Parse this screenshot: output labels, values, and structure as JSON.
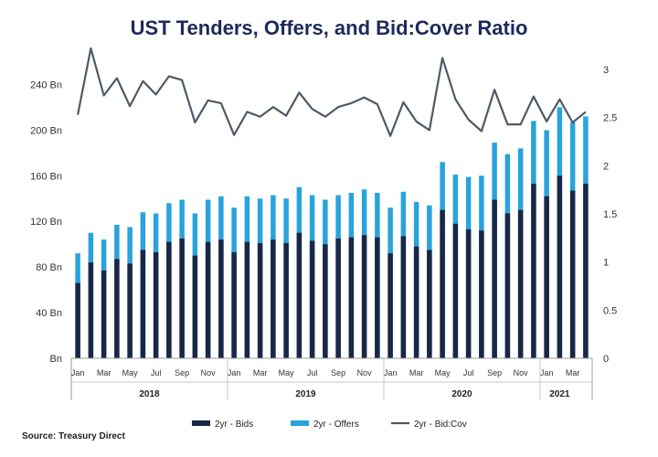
{
  "title": "UST Tenders, Offers, and Bid:Cover Ratio",
  "source": "Source: Treasury Direct",
  "chart_data": {
    "type": "bar",
    "title": "UST Tenders, Offers, and Bid:Cover Ratio",
    "left_axis": {
      "ticks": [
        0,
        40,
        80,
        120,
        160,
        200,
        240
      ],
      "tick_labels": [
        "Bn",
        "40 Bn",
        "80 Bn",
        "120 Bn",
        "160 Bn",
        "200 Bn",
        "240 Bn"
      ],
      "range": [
        0,
        270
      ]
    },
    "right_axis": {
      "ticks": [
        0,
        0.5,
        1,
        1.5,
        2,
        2.5,
        3
      ],
      "tick_labels": [
        "0",
        "0.5",
        "1",
        "1.5",
        "2",
        "2.5",
        "3"
      ],
      "range": [
        0,
        3.2
      ]
    },
    "month_labels": [
      "Jan",
      "Mar",
      "May",
      "Jul",
      "Sep",
      "Nov",
      "Jan",
      "Mar",
      "May",
      "Jul",
      "Sep",
      "Nov",
      "Jan",
      "Mar",
      "May",
      "Jul",
      "Sep",
      "Nov",
      "Jan",
      "Mar"
    ],
    "month_label_index": [
      0,
      2,
      4,
      6,
      8,
      10,
      12,
      14,
      16,
      18,
      20,
      22,
      24,
      26,
      28,
      30,
      32,
      34,
      36,
      38
    ],
    "years": [
      {
        "label": "2018",
        "start": 0,
        "end": 12
      },
      {
        "label": "2019",
        "start": 12,
        "end": 24
      },
      {
        "label": "2020",
        "start": 24,
        "end": 36
      },
      {
        "label": "2021",
        "start": 36,
        "end": 39
      }
    ],
    "series": [
      {
        "name": "2yr - Bids",
        "kind": "bar",
        "axis": "left",
        "color": "#1a2744",
        "values": [
          66,
          84,
          77,
          87,
          83,
          95,
          93,
          102,
          105,
          90,
          102,
          104,
          93,
          102,
          101,
          104,
          101,
          110,
          103,
          100,
          105,
          106,
          108,
          106,
          92,
          107,
          98,
          95,
          130,
          118,
          113,
          112,
          139,
          127,
          130,
          153,
          142,
          160,
          147,
          153
        ]
      },
      {
        "name": "2yr - Offers",
        "kind": "bar",
        "axis": "left",
        "color": "#29a3dc",
        "values": [
          92,
          110,
          104,
          117,
          115,
          128,
          127,
          136,
          139,
          127,
          139,
          142,
          132,
          142,
          140,
          143,
          140,
          150,
          143,
          139,
          143,
          145,
          148,
          145,
          132,
          146,
          137,
          134,
          172,
          161,
          159,
          160,
          189,
          179,
          184,
          208,
          200,
          220,
          207,
          212
        ]
      },
      {
        "name": "2yr - Bid:Cov",
        "kind": "line",
        "axis": "right",
        "color": "#4d5a66",
        "values": [
          2.53,
          3.22,
          2.73,
          2.91,
          2.62,
          2.88,
          2.74,
          2.93,
          2.89,
          2.45,
          2.68,
          2.65,
          2.32,
          2.56,
          2.51,
          2.61,
          2.52,
          2.76,
          2.59,
          2.51,
          2.61,
          2.65,
          2.71,
          2.64,
          2.31,
          2.66,
          2.46,
          2.37,
          3.12,
          2.69,
          2.48,
          2.36,
          2.79,
          2.43,
          2.43,
          2.72,
          2.46,
          2.69,
          2.45,
          2.56
        ]
      }
    ],
    "legend": {
      "position": "bottom",
      "entries": [
        "2yr - Bids",
        "2yr - Offers",
        "2yr - Bid:Cov"
      ]
    },
    "grid": false
  }
}
